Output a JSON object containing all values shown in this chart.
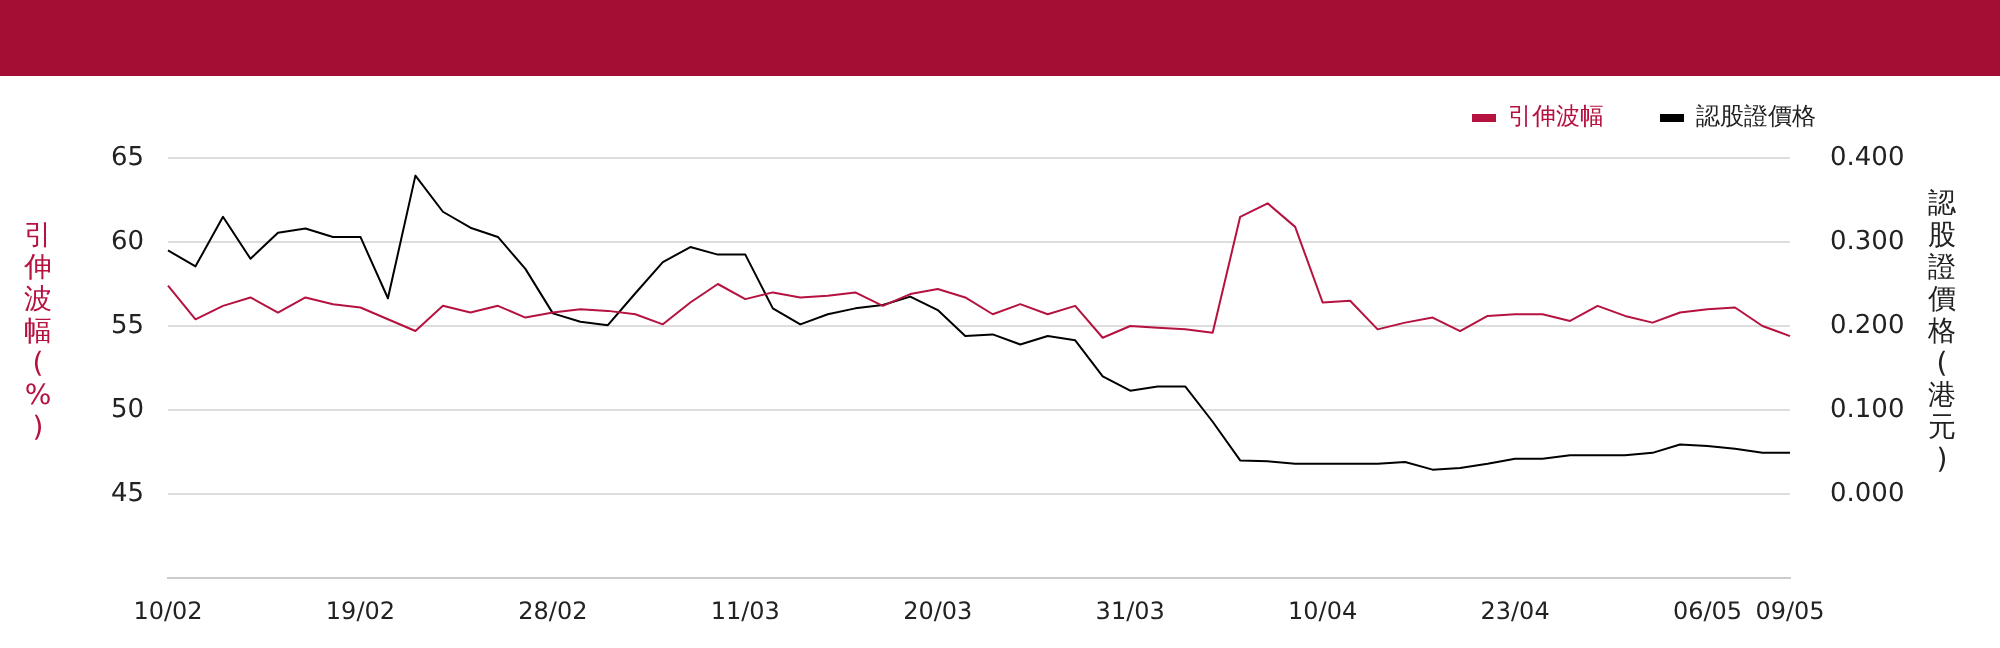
{
  "chart_data": {
    "type": "line",
    "ylabel": "引伸波幅(%)",
    "y2label": "認股證價格(港元)",
    "categories": [
      "10/02",
      null,
      null,
      null,
      null,
      null,
      null,
      "19/02",
      null,
      null,
      null,
      null,
      null,
      null,
      "28/02",
      null,
      null,
      null,
      null,
      null,
      null,
      "11/03",
      null,
      null,
      null,
      null,
      null,
      null,
      "20/03",
      null,
      null,
      null,
      null,
      null,
      null,
      "31/03",
      null,
      null,
      null,
      null,
      null,
      null,
      "10/04",
      null,
      null,
      null,
      null,
      null,
      null,
      "23/04",
      null,
      null,
      null,
      null,
      null,
      null,
      "06/05",
      null,
      null,
      "09/05"
    ],
    "series": [
      {
        "name": "引伸波幅",
        "color": "#b5123f",
        "values": [
          57.4,
          55.4,
          56.2,
          56.7,
          55.8,
          56.7,
          56.3,
          56.1,
          55.4,
          54.7,
          56.2,
          55.8,
          56.2,
          55.5,
          55.8,
          56.0,
          55.9,
          55.7,
          55.1,
          56.4,
          57.5,
          56.6,
          57.0,
          56.7,
          56.8,
          57.0,
          56.2,
          56.9,
          57.2,
          56.7,
          55.7,
          56.3,
          55.7,
          56.2,
          54.3,
          55.0,
          54.9,
          54.8,
          54.6,
          61.5,
          62.3,
          60.9,
          56.4,
          56.5,
          54.8,
          55.2,
          55.5,
          54.7,
          55.6,
          55.7,
          55.7,
          55.3,
          56.2,
          55.6,
          55.2,
          55.8,
          56.0,
          56.1,
          55.0,
          54.4
        ]
      },
      {
        "name": "認股證價格",
        "color": "#000000",
        "axis": "y2",
        "values": [
          0.29,
          0.271,
          0.33,
          0.28,
          0.311,
          0.316,
          0.306,
          0.306,
          0.233,
          0.379,
          0.336,
          0.317,
          0.306,
          0.268,
          0.215,
          0.205,
          0.201,
          0.239,
          0.276,
          0.294,
          0.285,
          0.285,
          0.221,
          0.202,
          0.214,
          0.221,
          0.225,
          0.235,
          0.219,
          0.188,
          0.19,
          0.178,
          0.188,
          0.183,
          0.14,
          0.123,
          0.128,
          0.128,
          0.086,
          0.04,
          0.039,
          0.036,
          0.036,
          0.036,
          0.036,
          0.038,
          0.029,
          0.031,
          0.036,
          0.042,
          0.042,
          0.046,
          0.046,
          0.046,
          0.049,
          0.059,
          0.057,
          0.054,
          0.049,
          0.049
        ]
      }
    ],
    "ylim": [
      40,
      65
    ],
    "yticks": [
      45,
      50,
      55,
      60,
      65
    ],
    "y2lim": [
      -0.1,
      0.4
    ],
    "y2ticks": [
      {
        "value": 0,
        "label": "0.000"
      },
      {
        "value": 0.1,
        "label": "0.100"
      },
      {
        "value": 0.2,
        "label": "0.200"
      },
      {
        "value": 0.3,
        "label": "0.300"
      },
      {
        "value": 0.4,
        "label": "0.400"
      }
    ],
    "grid": "y",
    "legend": "top right",
    "marker": "none"
  }
}
